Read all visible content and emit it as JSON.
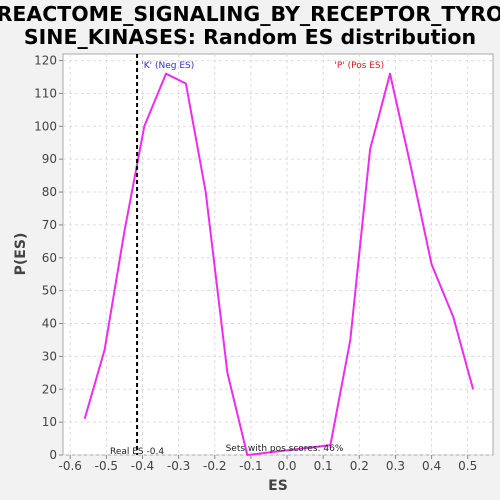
{
  "chart_data": {
    "type": "line",
    "title_lines": [
      "REACTOME_SIGNALING_BY_RECEPTOR_TYRO",
      "SINE_KINASES: Random ES distribution"
    ],
    "xlabel": "ES",
    "ylabel": "P(ES)",
    "xlim": [
      -0.62,
      0.57
    ],
    "ylim": [
      0,
      122
    ],
    "x_ticks": [
      -0.6,
      -0.5,
      -0.4,
      -0.3,
      -0.2,
      -0.1,
      0.0,
      0.1,
      0.2,
      0.3,
      0.4,
      0.5
    ],
    "x_tick_labels": [
      "-0.6",
      "-0.5",
      "-0.4",
      "-0.3",
      "-0.2",
      "-0.1",
      "0.0",
      "0.1",
      "0.2",
      "0.3",
      "0.4",
      "0.5"
    ],
    "y_ticks": [
      0,
      10,
      20,
      30,
      40,
      50,
      60,
      70,
      80,
      90,
      100,
      110,
      120
    ],
    "y_tick_labels": [
      "0",
      "10",
      "20",
      "30",
      "40",
      "50",
      "60",
      "70",
      "80",
      "90",
      "100",
      "110",
      "120"
    ],
    "grid": true,
    "line_color": "#ee2cee",
    "series": [
      {
        "x": [
          -0.56,
          -0.505,
          -0.45,
          -0.395,
          -0.335,
          -0.28,
          -0.225,
          -0.165,
          -0.11,
          0.12,
          0.175,
          0.23,
          0.285,
          0.34,
          0.4,
          0.46,
          0.515
        ],
        "y": [
          11,
          32,
          68,
          100,
          116,
          113,
          80,
          25,
          0,
          3,
          35,
          93,
          116,
          89,
          58,
          42,
          20
        ]
      }
    ],
    "real_es_x": -0.415,
    "annotations": {
      "neg_label": "'K' (Neg ES)",
      "neg_color": "#3030cc",
      "neg_x": -0.33,
      "pos_label": "'P' (Pos ES)",
      "pos_color": "#cc2020",
      "pos_x": 0.2,
      "real_es_label": "Real ES -0.4",
      "real_es_label_x": -0.49,
      "pos_scores_label": "Sets with pos scores: 46%",
      "pos_scores_x": -0.17
    }
  }
}
